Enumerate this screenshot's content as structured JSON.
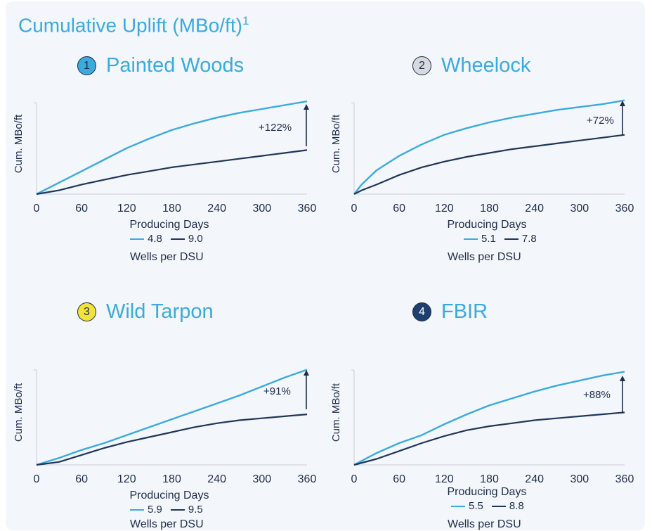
{
  "title": "Cumulative Uplift (MBo/ft)",
  "title_sup": "1",
  "colors": {
    "light": "#3aaadf",
    "dark": "#1f3658",
    "badge1": "#3aaadf",
    "badge2": "#d6d9dd",
    "badge3": "#f2e33a",
    "badge4": "#1f3f6e"
  },
  "chart_data": [
    {
      "type": "line",
      "number": "1",
      "title": "Painted Woods",
      "xlabel": "Producing Days",
      "ylabel": "Cum. MBo/ft",
      "x_ticks": [
        "0",
        "60",
        "120",
        "180",
        "240",
        "300",
        "360"
      ],
      "xlim": [
        0,
        360
      ],
      "ylim": [
        0,
        1
      ],
      "legend_title": "Wells per DSU",
      "annotation": "+122%",
      "series": [
        {
          "name": "4.8",
          "color": "light",
          "x": [
            0,
            30,
            60,
            90,
            120,
            150,
            180,
            210,
            240,
            270,
            300,
            330,
            360
          ],
          "y": [
            0,
            0.12,
            0.24,
            0.36,
            0.48,
            0.58,
            0.67,
            0.74,
            0.8,
            0.85,
            0.89,
            0.93,
            0.97
          ]
        },
        {
          "name": "9.0",
          "color": "dark",
          "x": [
            0,
            30,
            60,
            90,
            120,
            150,
            180,
            210,
            240,
            270,
            300,
            330,
            360
          ],
          "y": [
            0,
            0.04,
            0.1,
            0.15,
            0.2,
            0.24,
            0.28,
            0.31,
            0.34,
            0.37,
            0.4,
            0.43,
            0.46
          ]
        }
      ]
    },
    {
      "type": "line",
      "number": "2",
      "title": "Wheelock",
      "xlabel": "Producing Days",
      "ylabel": "Cum. MBo/ft",
      "x_ticks": [
        "0",
        "60",
        "120",
        "180",
        "240",
        "300",
        "360"
      ],
      "xlim": [
        0,
        360
      ],
      "ylim": [
        0,
        1
      ],
      "legend_title": "Wells per DSU",
      "annotation": "+72%",
      "series": [
        {
          "name": "5.1",
          "color": "light",
          "x": [
            0,
            10,
            30,
            60,
            90,
            120,
            150,
            180,
            210,
            240,
            270,
            300,
            330,
            360
          ],
          "y": [
            0,
            0.1,
            0.25,
            0.4,
            0.52,
            0.62,
            0.69,
            0.75,
            0.8,
            0.84,
            0.88,
            0.91,
            0.94,
            0.98
          ]
        },
        {
          "name": "7.8",
          "color": "dark",
          "x": [
            0,
            10,
            30,
            60,
            90,
            120,
            150,
            180,
            210,
            240,
            270,
            300,
            330,
            360
          ],
          "y": [
            0,
            0.04,
            0.1,
            0.2,
            0.28,
            0.34,
            0.39,
            0.43,
            0.47,
            0.5,
            0.53,
            0.56,
            0.59,
            0.62
          ]
        }
      ]
    },
    {
      "type": "line",
      "number": "3",
      "title": "Wild Tarpon",
      "xlabel": "Producing Days",
      "ylabel": "Cum. MBo/ft",
      "x_ticks": [
        "0",
        "60",
        "120",
        "180",
        "240",
        "300",
        "360"
      ],
      "xlim": [
        0,
        360
      ],
      "ylim": [
        0,
        1
      ],
      "legend_title": "Wells per DSU",
      "annotation": "+91%",
      "series": [
        {
          "name": "5.9",
          "color": "light",
          "x": [
            0,
            30,
            60,
            90,
            120,
            150,
            180,
            210,
            240,
            270,
            300,
            330,
            360
          ],
          "y": [
            0,
            0.07,
            0.15,
            0.22,
            0.3,
            0.38,
            0.46,
            0.54,
            0.62,
            0.7,
            0.79,
            0.88,
            0.96
          ]
        },
        {
          "name": "9.5",
          "color": "dark",
          "x": [
            0,
            30,
            60,
            90,
            120,
            150,
            180,
            210,
            240,
            270,
            300,
            330,
            360
          ],
          "y": [
            0,
            0.03,
            0.1,
            0.17,
            0.23,
            0.28,
            0.33,
            0.38,
            0.42,
            0.45,
            0.47,
            0.49,
            0.51
          ]
        }
      ]
    },
    {
      "type": "line",
      "number": "4",
      "title": "FBIR",
      "xlabel": "Producing Days",
      "ylabel": "Cum. MBo/ft",
      "x_ticks": [
        "0",
        "60",
        "120",
        "180",
        "240",
        "300",
        "360"
      ],
      "xlim": [
        0,
        360
      ],
      "ylim": [
        0,
        1
      ],
      "legend_title": "Wells per DSU",
      "annotation": "+88%",
      "series": [
        {
          "name": "5.5",
          "color": "light",
          "x": [
            0,
            30,
            60,
            90,
            120,
            150,
            180,
            210,
            240,
            270,
            300,
            330,
            360
          ],
          "y": [
            0,
            0.12,
            0.22,
            0.3,
            0.41,
            0.51,
            0.6,
            0.67,
            0.74,
            0.8,
            0.85,
            0.9,
            0.94
          ]
        },
        {
          "name": "8.8",
          "color": "dark",
          "x": [
            0,
            30,
            60,
            90,
            120,
            150,
            180,
            210,
            240,
            270,
            300,
            330,
            360
          ],
          "y": [
            0,
            0.06,
            0.14,
            0.22,
            0.29,
            0.35,
            0.39,
            0.42,
            0.45,
            0.47,
            0.49,
            0.51,
            0.53
          ]
        }
      ]
    }
  ]
}
